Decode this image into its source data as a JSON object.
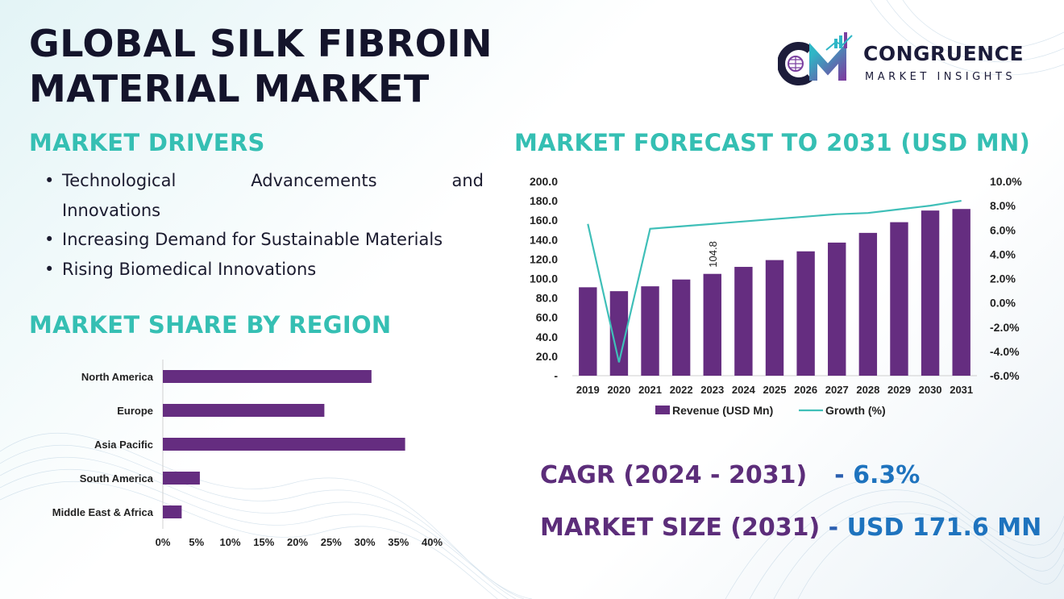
{
  "title_line1": "GLOBAL SILK FIBROIN",
  "title_line2": "MATERIAL MARKET",
  "logo": {
    "name": "CONGRUENCE",
    "sub": "MARKET INSIGHTS",
    "mark": "CM"
  },
  "drivers": {
    "heading": "MARKET DRIVERS",
    "items": [
      "Technological Advancements and",
      "Innovations",
      "Increasing Demand for Sustainable Materials",
      "Rising Biomedical Innovations"
    ],
    "bullet": "•"
  },
  "region": {
    "heading": "MARKET SHARE BY REGION"
  },
  "forecast": {
    "heading": "MARKET FORECAST TO 2031 (USD MN)"
  },
  "kpis": {
    "cagr_label": "CAGR (2024 - 2031)",
    "cagr_dash": "-",
    "cagr_value": "6.3%",
    "size_label": "MARKET SIZE (2031)",
    "size_dash": "-",
    "size_value": "USD 171.6 MN"
  },
  "colors": {
    "bar": "#652d80",
    "line": "#3fbfb8",
    "heading": "#35bfb3",
    "kpi_label": "#5c2d7a",
    "kpi_value": "#1e73be"
  },
  "chart_data": [
    {
      "type": "bar",
      "orientation": "horizontal",
      "categories": [
        "North America",
        "Europe",
        "Asia Pacific",
        "South America",
        "Middle East & Africa"
      ],
      "values": [
        31,
        24,
        36,
        5.5,
        2.8
      ],
      "xlim": [
        0,
        40
      ],
      "xticks": [
        "0%",
        "5%",
        "10%",
        "15%",
        "20%",
        "25%",
        "30%",
        "35%",
        "40%"
      ],
      "xtick_values": [
        0,
        5,
        10,
        15,
        20,
        25,
        30,
        35,
        40
      ]
    },
    {
      "type": "bar",
      "categories": [
        "2019",
        "2020",
        "2021",
        "2022",
        "2023",
        "2024",
        "2025",
        "2026",
        "2027",
        "2028",
        "2029",
        "2030",
        "2031"
      ],
      "series": [
        {
          "name": "Revenue (USD Mn)",
          "type": "bar",
          "axis": "left",
          "values": [
            91,
            87,
            92,
            99,
            104.8,
            112,
            119,
            128,
            137,
            147,
            158,
            170,
            171.6
          ]
        },
        {
          "name": "Growth (%)",
          "type": "line",
          "axis": "right",
          "values": [
            6.5,
            -4.9,
            6.1,
            6.3,
            6.5,
            6.7,
            6.9,
            7.1,
            7.3,
            7.4,
            7.7,
            8.0,
            8.4
          ]
        }
      ],
      "data_labels": [
        {
          "category": "2023",
          "text": "104.8"
        }
      ],
      "ylim_left": [
        0,
        200
      ],
      "yticks_left": [
        "-",
        "20.0",
        "40.0",
        "60.0",
        "80.0",
        "100.0",
        "120.0",
        "140.0",
        "160.0",
        "180.0",
        "200.0"
      ],
      "ylim_right": [
        -6,
        10
      ],
      "yticks_right": [
        "-6.0%",
        "-4.0%",
        "-2.0%",
        "0.0%",
        "2.0%",
        "4.0%",
        "6.0%",
        "8.0%",
        "10.0%"
      ],
      "legend": "bottom"
    }
  ]
}
